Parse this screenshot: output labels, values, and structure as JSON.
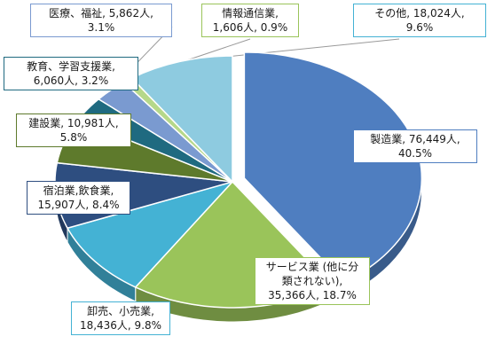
{
  "chart_data": {
    "type": "pie",
    "slices": [
      {
        "label": "製造業",
        "count": "76,449人",
        "percent": "40.5%",
        "value": 40.5,
        "color": "#4f7ec0"
      },
      {
        "label": "サービス業 (他に分類されない)",
        "count": "35,366人",
        "percent": "18.7%",
        "value": 18.7,
        "color": "#9ac45a"
      },
      {
        "label": "卸売、小売業",
        "count": "18,436人",
        "percent": "9.8%",
        "value": 9.8,
        "color": "#44b2d4"
      },
      {
        "label": "宿泊業,飲食業",
        "count": "15,907人",
        "percent": "8.4%",
        "value": 8.4,
        "color": "#2e4e80"
      },
      {
        "label": "建設業",
        "count": "10,981人",
        "percent": "5.8%",
        "value": 5.8,
        "color": "#5e7a2c"
      },
      {
        "label": "教育、学習支援業",
        "count": "6,060人",
        "percent": "3.2%",
        "value": 3.2,
        "color": "#1f6a80"
      },
      {
        "label": "医療、福祉",
        "count": "5,862人",
        "percent": "3.1%",
        "value": 3.1,
        "color": "#7a9ad0"
      },
      {
        "label": "情報通信業",
        "count": "1,606人",
        "percent": "0.9%",
        "value": 0.9,
        "color": "#b6d88a"
      },
      {
        "label": "その他",
        "count": "18,024人",
        "percent": "9.6%",
        "value": 9.6,
        "color": "#8ecbe0"
      }
    ]
  },
  "labels": {
    "manufacturing": {
      "line1": "製造業, 76,449人,",
      "line2": "40.5%"
    },
    "services": {
      "line1": "サービス業 (他に分",
      "line2": "類されない),",
      "line3": "35,366人, 18.7%"
    },
    "retail": {
      "line1": "卸売、小売業,",
      "line2": "18,436人, 9.8%"
    },
    "hospitality": {
      "line1": "宿泊業,飲食業,",
      "line2": "15,907人, 8.4%"
    },
    "construction": {
      "line1": "建設業, 10,981人,",
      "line2": "5.8%"
    },
    "education": {
      "line1": "教育、学習支援業,",
      "line2": "6,060人, 3.2%"
    },
    "medical": {
      "line1": "医療、福祉, 5,862人,",
      "line2": "3.1%"
    },
    "it": {
      "line1": "情報通信業,",
      "line2": "1,606人, 0.9%"
    },
    "other": {
      "line1": "その他, 18,024人,",
      "line2": "9.6%"
    }
  }
}
